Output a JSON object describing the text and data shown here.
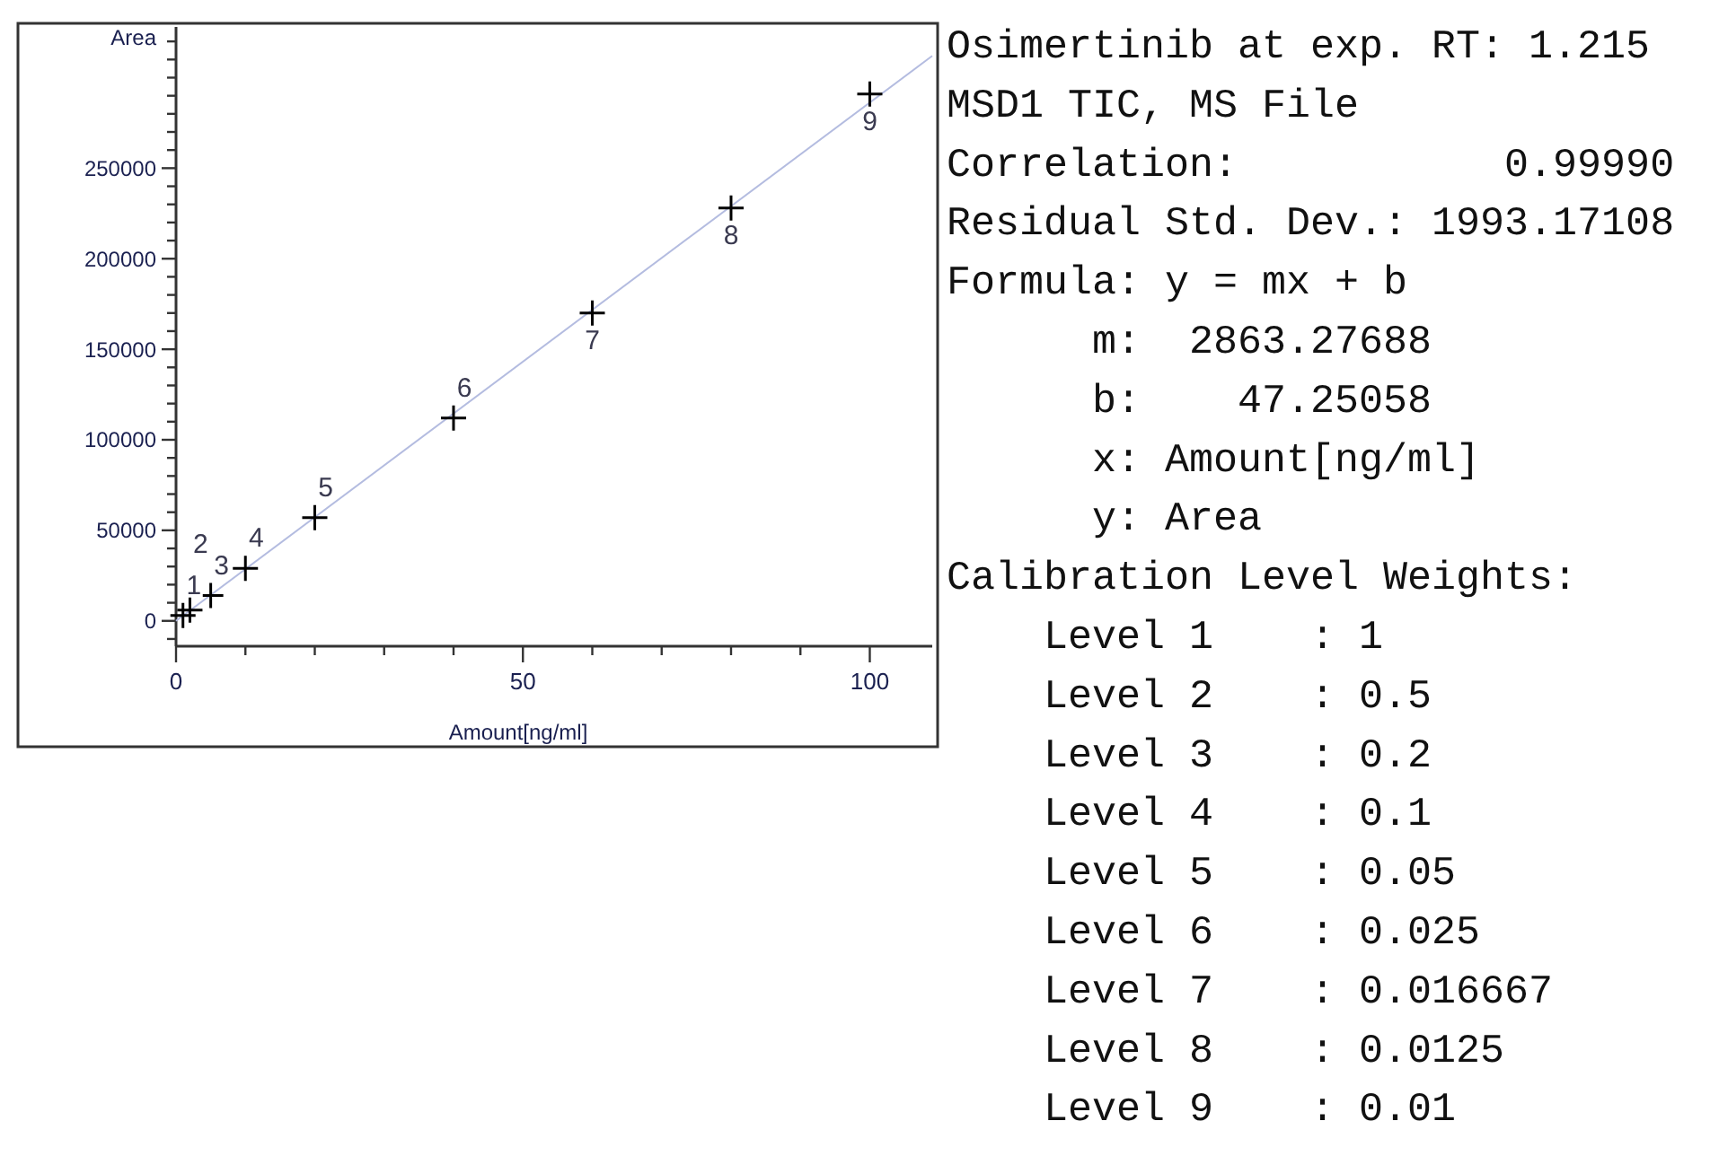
{
  "chart_data": [
    {
      "type": "scatter",
      "xlabel": "Amount[ng/ml]",
      "ylabel": "Area",
      "xlim": [
        0,
        109
      ],
      "ylim": [
        -14000,
        328000
      ],
      "xticks": [
        0,
        {
          "value": 10,
          "label": null
        },
        {
          "value": 20,
          "label": null
        },
        {
          "value": 30,
          "label": null
        },
        {
          "value": 40,
          "label": null
        },
        50,
        {
          "value": 60,
          "label": null
        },
        {
          "value": 70,
          "label": null
        },
        {
          "value": 80,
          "label": null
        },
        {
          "value": 90,
          "label": null
        },
        100
      ],
      "yticks": [
        {
          "value": -10000,
          "label": null
        },
        0,
        {
          "value": 10000,
          "label": null
        },
        {
          "value": 20000,
          "label": null
        },
        {
          "value": 30000,
          "label": null
        },
        {
          "value": 40000,
          "label": null
        },
        50000,
        {
          "value": 60000,
          "label": null
        },
        {
          "value": 70000,
          "label": null
        },
        {
          "value": 80000,
          "label": null
        },
        {
          "value": 90000,
          "label": null
        },
        100000,
        {
          "value": 110000,
          "label": null
        },
        {
          "value": 120000,
          "label": null
        },
        {
          "value": 130000,
          "label": null
        },
        {
          "value": 140000,
          "label": null
        },
        150000,
        {
          "value": 160000,
          "label": null
        },
        {
          "value": 170000,
          "label": null
        },
        {
          "value": 180000,
          "label": null
        },
        {
          "value": 190000,
          "label": null
        },
        200000,
        {
          "value": 210000,
          "label": null
        },
        {
          "value": 220000,
          "label": null
        },
        {
          "value": 230000,
          "label": null
        },
        {
          "value": 240000,
          "label": null
        },
        250000,
        {
          "value": 260000,
          "label": null
        },
        {
          "value": 270000,
          "label": null
        },
        {
          "value": 280000,
          "label": null
        },
        {
          "value": 290000,
          "label": null
        },
        {
          "value": 300000,
          "label": null
        },
        {
          "value": 310000,
          "label": null
        },
        {
          "value": 320000,
          "label": null
        }
      ],
      "grid": false,
      "series": [
        {
          "type": "line",
          "color": "#b4bce0",
          "x": [
            0,
            109
          ],
          "values": [
            0,
            312000
          ],
          "line_style": "solid"
        },
        {
          "type": "scatter",
          "color": "#000000",
          "marker": "cross",
          "x": [
            1,
            2,
            5,
            10,
            20,
            40,
            60,
            80,
            100
          ],
          "values": [
            3000,
            6000,
            14000,
            29000,
            57000,
            112000,
            170000,
            228000,
            291000
          ]
        }
      ],
      "annotations": [
        {
          "text": "1",
          "x": 1,
          "y": 3000
        },
        {
          "text": "2",
          "x": 2,
          "y": 6000
        },
        {
          "text": "3",
          "x": 5,
          "y": 14000
        },
        {
          "text": "4",
          "x": 10,
          "y": 29000
        },
        {
          "text": "5",
          "x": 20,
          "y": 57000
        },
        {
          "text": "6",
          "x": 40,
          "y": 112000
        },
        {
          "text": "7",
          "x": 60,
          "y": 170000
        },
        {
          "text": "8",
          "x": 80,
          "y": 228000
        },
        {
          "text": "9",
          "x": 100,
          "y": 291000
        }
      ]
    },
    {
      "type": "other",
      "annotations": [
        "Osimertinib at exp. RT: 1.215",
        "MSD1 TIC, MS File",
        "Correlation:           0.99990",
        "Residual Std. Dev.: 1993.17108",
        "Formula: y = mx + b",
        "      m:  2863.27688",
        "      b:    47.25058",
        "      x: Amount[ng/ml]",
        "      y: Area",
        "Calibration Level Weights:",
        "    Level 1    : 1",
        "    Level 2    : 0.5",
        "    Level 3    : 0.2",
        "    Level 4    : 0.1",
        "    Level 5    : 0.05",
        "    Level 6    : 0.025",
        "    Level 7    : 0.016667",
        "    Level 8    : 0.0125",
        "    Level 9    : 0.01"
      ]
    }
  ]
}
